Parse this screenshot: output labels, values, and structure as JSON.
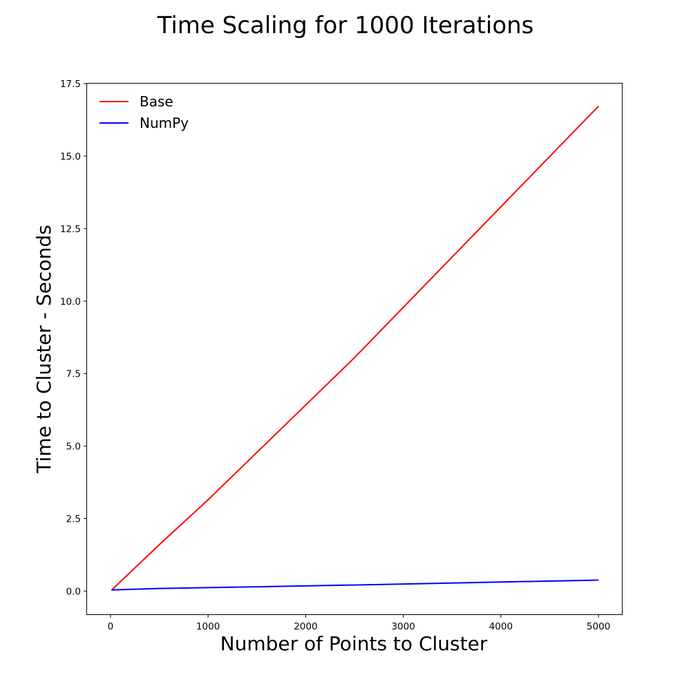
{
  "chart_data": {
    "type": "line",
    "title": "Time Scaling for 1000 Iterations",
    "xlabel": "Number of Points to Cluster",
    "ylabel": "Time to Cluster - Seconds",
    "xlim": [
      -240,
      5240
    ],
    "ylim": [
      -0.8,
      17.5
    ],
    "xticks": [
      0,
      1000,
      2000,
      3000,
      4000,
      5000
    ],
    "xtick_labels": [
      "0",
      "1000",
      "2000",
      "3000",
      "4000",
      "5000"
    ],
    "yticks": [
      0,
      2.5,
      5,
      7.5,
      10,
      12.5,
      15,
      17.5
    ],
    "ytick_labels": [
      "0.0",
      "2.5",
      "5.0",
      "7.5",
      "10.0",
      "12.5",
      "15.0",
      "17.5"
    ],
    "grid": false,
    "legend_position": "top-left",
    "series": [
      {
        "name": "Base",
        "color": "#ff0000",
        "x": [
          10,
          100,
          500,
          1000,
          2500,
          5000
        ],
        "y": [
          0.03,
          0.32,
          1.6,
          3.15,
          8.05,
          16.72
        ]
      },
      {
        "name": "NumPy",
        "color": "#0000ff",
        "x": [
          10,
          100,
          500,
          1000,
          2500,
          5000
        ],
        "y": [
          0.04,
          0.05,
          0.09,
          0.12,
          0.21,
          0.38
        ]
      }
    ]
  }
}
